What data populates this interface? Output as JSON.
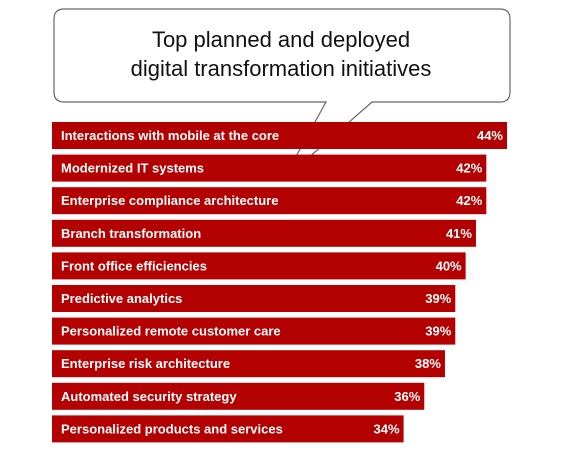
{
  "chart_data": {
    "type": "bar",
    "orientation": "horizontal",
    "title_lines": [
      "Top planned and deployed",
      "digital transformation initiatives"
    ],
    "categories": [
      "Interactions with mobile at the core",
      "Modernized IT systems",
      "Enterprise compliance  architecture",
      "Branch transformation",
      "Front office efficiencies",
      "Predictive analytics",
      "Personalized remote customer care",
      "Enterprise risk architecture",
      "Automated security strategy",
      "Personalized products and services"
    ],
    "values": [
      44,
      42,
      42,
      41,
      40,
      39,
      39,
      38,
      36,
      34
    ],
    "value_labels": [
      "44%",
      "42%",
      "42%",
      "41%",
      "40%",
      "39%",
      "39%",
      "38%",
      "36%",
      "34%"
    ],
    "unit": "%",
    "bar_color": "#b30000",
    "title_box": "speech-bubble",
    "grid": false,
    "legend": "none"
  }
}
